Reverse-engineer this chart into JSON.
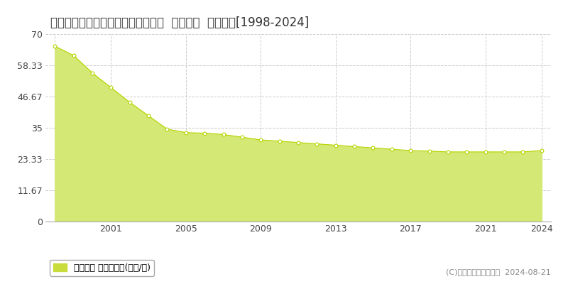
{
  "title": "兵庫県川西市平野１丁目９９番２外  地価公示  地価推移[1998-2024]",
  "years": [
    1998,
    1999,
    2000,
    2001,
    2002,
    2003,
    2004,
    2005,
    2006,
    2007,
    2008,
    2009,
    2010,
    2011,
    2012,
    2013,
    2014,
    2015,
    2016,
    2017,
    2018,
    2019,
    2020,
    2021,
    2022,
    2023,
    2024
  ],
  "values": [
    65.5,
    62.0,
    55.5,
    50.0,
    44.5,
    39.5,
    34.5,
    33.2,
    33.0,
    32.5,
    31.5,
    30.5,
    30.0,
    29.5,
    29.0,
    28.5,
    28.0,
    27.5,
    27.0,
    26.5,
    26.3,
    26.0,
    26.0,
    26.0,
    26.0,
    26.0,
    26.5
  ],
  "yticks": [
    0,
    11.67,
    23.33,
    35,
    46.67,
    58.33,
    70
  ],
  "ytick_labels": [
    "0",
    "11.67",
    "23.33",
    "35",
    "46.67",
    "58.33",
    "70"
  ],
  "xticks": [
    1998,
    2001,
    2005,
    2009,
    2013,
    2017,
    2021,
    2024
  ],
  "xtick_labels": [
    "",
    "2001",
    "2005",
    "2009",
    "2013",
    "2017",
    "2021",
    "2024"
  ],
  "ylim": [
    0,
    70
  ],
  "xlim": [
    1997.5,
    2024.5
  ],
  "fill_color": "#d4e875",
  "line_color": "#b8d400",
  "marker_facecolor": "#ffffff",
  "marker_edgecolor": "#b8d400",
  "bg_color": "#ffffff",
  "grid_color": "#cccccc",
  "legend_label": "地価公示 平均坪単価(万円/坪)",
  "legend_swatch_color": "#c8dc3c",
  "copyright_text": "(C)土地価格ドットコム  2024-08-21",
  "title_fontsize": 12,
  "axis_fontsize": 9,
  "legend_fontsize": 9,
  "copyright_fontsize": 8
}
